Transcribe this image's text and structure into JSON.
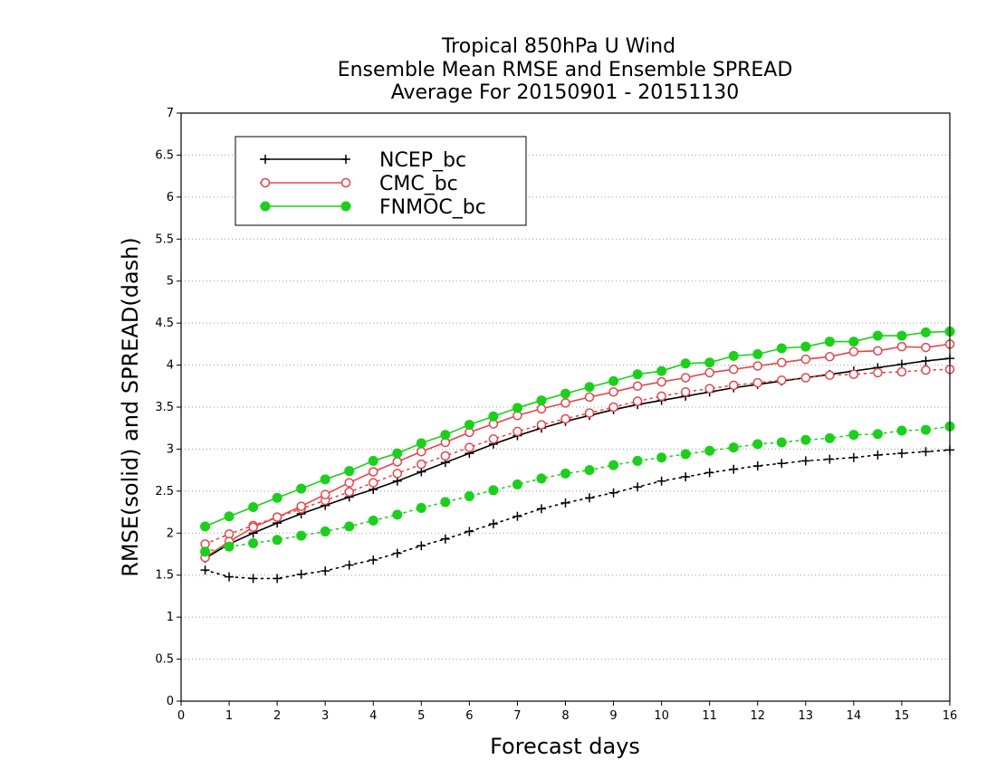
{
  "chart_data": {
    "type": "line",
    "title": [
      "Tropical 850hPa U Wind",
      "Ensemble Mean RMSE and Ensemble SPREAD",
      "Average For 20150901 - 20151130"
    ],
    "xlabel": "Forecast days",
    "ylabel": "RMSE(solid) and SPREAD(dash)",
    "xlim": [
      0,
      16
    ],
    "ylim": [
      0,
      7
    ],
    "xticks": [
      "0",
      "1",
      "2",
      "3",
      "4",
      "5",
      "6",
      "7",
      "8",
      "9",
      "10",
      "11",
      "12",
      "13",
      "14",
      "15",
      "16"
    ],
    "yticks": [
      "0",
      "0.5",
      "1",
      "1.5",
      "2",
      "2.5",
      "3",
      "3.5",
      "4",
      "4.5",
      "5",
      "5.5",
      "6",
      "6.5",
      "7"
    ],
    "grid": "horizontal dotted",
    "legend_position": "top-left",
    "x": [
      0.5,
      1,
      1.5,
      2,
      2.5,
      3,
      3.5,
      4,
      4.5,
      5,
      5.5,
      6,
      6.5,
      7,
      7.5,
      8,
      8.5,
      9,
      9.5,
      10,
      10.5,
      11,
      11.5,
      12,
      12.5,
      13,
      13.5,
      14,
      14.5,
      15,
      15.5,
      16
    ],
    "series": [
      {
        "name": "NCEP_bc",
        "color": "#000000",
        "marker": "plus",
        "rmse": [
          1.7,
          1.87,
          2.0,
          2.12,
          2.23,
          2.33,
          2.43,
          2.52,
          2.62,
          2.73,
          2.84,
          2.95,
          3.06,
          3.16,
          3.25,
          3.33,
          3.4,
          3.47,
          3.53,
          3.58,
          3.63,
          3.68,
          3.73,
          3.77,
          3.81,
          3.85,
          3.89,
          3.93,
          3.97,
          4.01,
          4.05,
          4.08
        ],
        "spread": [
          1.56,
          1.48,
          1.46,
          1.46,
          1.51,
          1.55,
          1.62,
          1.68,
          1.76,
          1.85,
          1.93,
          2.02,
          2.11,
          2.2,
          2.29,
          2.36,
          2.42,
          2.48,
          2.55,
          2.62,
          2.67,
          2.72,
          2.76,
          2.8,
          2.83,
          2.86,
          2.88,
          2.9,
          2.93,
          2.95,
          2.97,
          2.99
        ]
      },
      {
        "name": "CMC_bc",
        "color": "#e8434a",
        "marker": "open-circle",
        "rmse": [
          1.71,
          1.9,
          2.07,
          2.19,
          2.32,
          2.46,
          2.6,
          2.73,
          2.85,
          2.97,
          3.08,
          3.2,
          3.3,
          3.4,
          3.48,
          3.55,
          3.62,
          3.68,
          3.75,
          3.8,
          3.85,
          3.91,
          3.95,
          3.99,
          4.03,
          4.07,
          4.1,
          4.16,
          4.17,
          4.22,
          4.21,
          4.25
        ],
        "spread": [
          1.87,
          1.99,
          2.09,
          2.19,
          2.29,
          2.39,
          2.49,
          2.6,
          2.71,
          2.82,
          2.92,
          3.02,
          3.12,
          3.21,
          3.29,
          3.36,
          3.43,
          3.5,
          3.57,
          3.63,
          3.68,
          3.72,
          3.76,
          3.79,
          3.82,
          3.85,
          3.88,
          3.89,
          3.91,
          3.92,
          3.94,
          3.95
        ]
      },
      {
        "name": "FNMOC_bc",
        "color": "#19d119",
        "marker": "filled-circle",
        "rmse": [
          2.08,
          2.2,
          2.31,
          2.42,
          2.53,
          2.64,
          2.74,
          2.86,
          2.95,
          3.07,
          3.17,
          3.29,
          3.39,
          3.49,
          3.58,
          3.66,
          3.74,
          3.81,
          3.89,
          3.93,
          4.02,
          4.03,
          4.11,
          4.13,
          4.2,
          4.22,
          4.28,
          4.28,
          4.35,
          4.35,
          4.39,
          4.4
        ],
        "spread": [
          1.78,
          1.84,
          1.88,
          1.92,
          1.97,
          2.02,
          2.08,
          2.15,
          2.22,
          2.3,
          2.37,
          2.44,
          2.51,
          2.58,
          2.65,
          2.71,
          2.75,
          2.81,
          2.86,
          2.9,
          2.94,
          2.98,
          3.02,
          3.06,
          3.08,
          3.11,
          3.13,
          3.17,
          3.18,
          3.22,
          3.23,
          3.27
        ]
      }
    ]
  }
}
